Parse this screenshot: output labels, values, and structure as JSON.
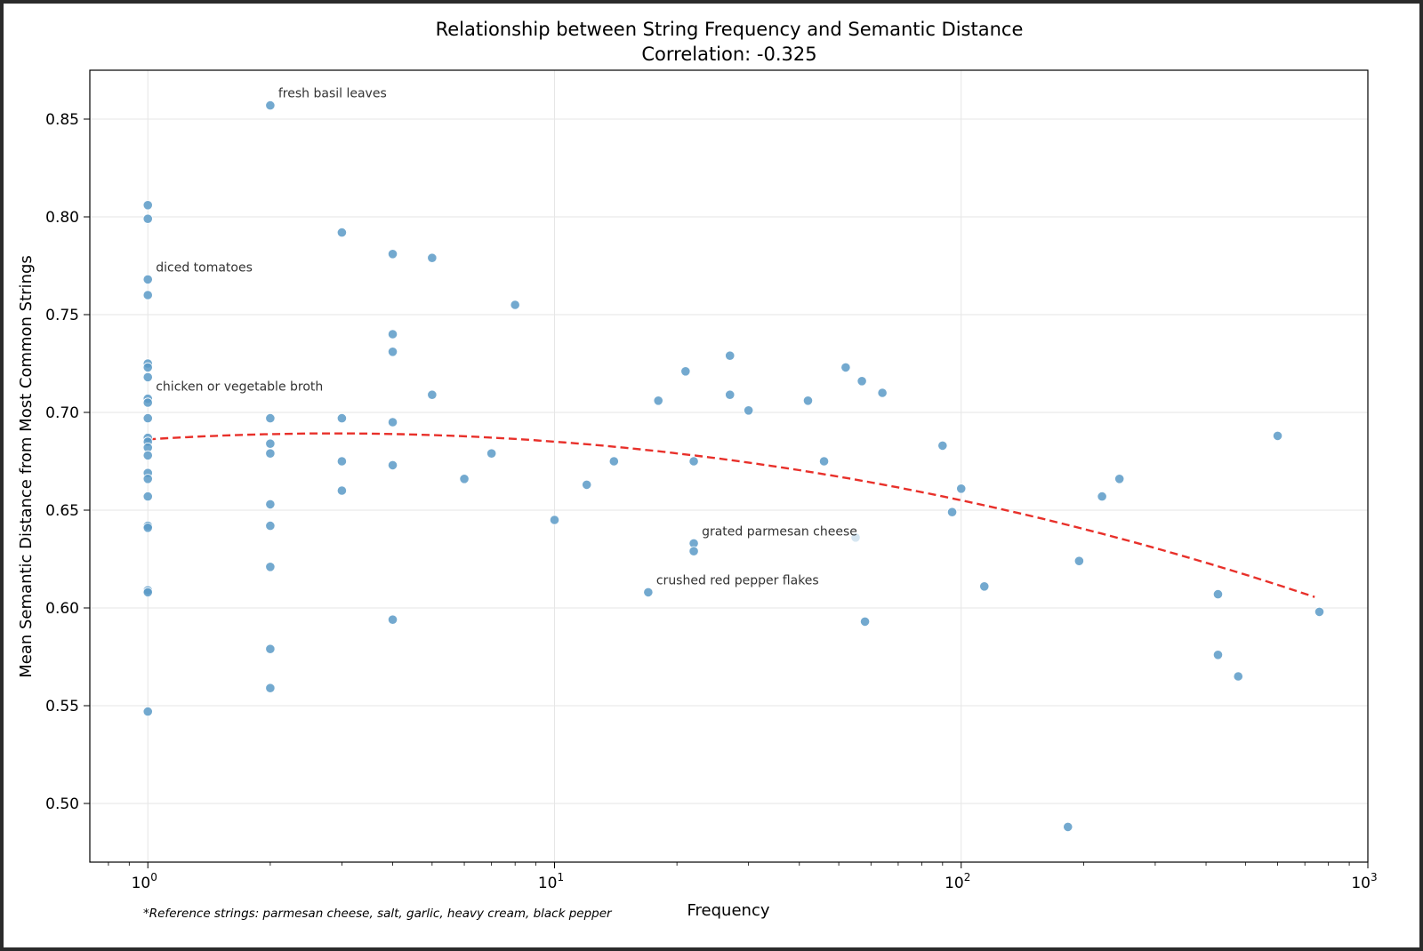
{
  "chart_data": {
    "type": "scatter",
    "title": "Relationship between String Frequency and Semantic Distance",
    "subtitle": "Correlation: -0.325",
    "xlabel": "Frequency",
    "ylabel": "Mean Semantic Distance from Most Common Strings",
    "xscale": "log",
    "xlim": [
      0.72,
      1000
    ],
    "ylim": [
      0.47,
      0.875
    ],
    "x_ticks": [
      {
        "value": 1,
        "base": "10",
        "exp": "0"
      },
      {
        "value": 10,
        "base": "10",
        "exp": "1"
      },
      {
        "value": 100,
        "base": "10",
        "exp": "2"
      },
      {
        "value": 1000,
        "base": "10",
        "exp": "3"
      }
    ],
    "y_ticks": [
      {
        "value": 0.5,
        "label": "0.50"
      },
      {
        "value": 0.55,
        "label": "0.55"
      },
      {
        "value": 0.6,
        "label": "0.60"
      },
      {
        "value": 0.65,
        "label": "0.65"
      },
      {
        "value": 0.7,
        "label": "0.70"
      },
      {
        "value": 0.75,
        "label": "0.75"
      },
      {
        "value": 0.8,
        "label": "0.80"
      },
      {
        "value": 0.85,
        "label": "0.85"
      }
    ],
    "grid": true,
    "point_color": "#5b9ac7",
    "trend_color": "#e8302a",
    "points": [
      {
        "x": 1,
        "y": 0.806
      },
      {
        "x": 1,
        "y": 0.799
      },
      {
        "x": 1,
        "y": 0.768
      },
      {
        "x": 1,
        "y": 0.76
      },
      {
        "x": 1,
        "y": 0.725
      },
      {
        "x": 1,
        "y": 0.723
      },
      {
        "x": 1,
        "y": 0.718
      },
      {
        "x": 1,
        "y": 0.707
      },
      {
        "x": 1,
        "y": 0.705
      },
      {
        "x": 1,
        "y": 0.697
      },
      {
        "x": 1,
        "y": 0.687
      },
      {
        "x": 1,
        "y": 0.685
      },
      {
        "x": 1,
        "y": 0.682
      },
      {
        "x": 1,
        "y": 0.678
      },
      {
        "x": 1,
        "y": 0.669
      },
      {
        "x": 1,
        "y": 0.666
      },
      {
        "x": 1,
        "y": 0.657
      },
      {
        "x": 1,
        "y": 0.642
      },
      {
        "x": 1,
        "y": 0.641
      },
      {
        "x": 1,
        "y": 0.609
      },
      {
        "x": 1,
        "y": 0.608
      },
      {
        "x": 1,
        "y": 0.547
      },
      {
        "x": 2,
        "y": 0.857
      },
      {
        "x": 2,
        "y": 0.697
      },
      {
        "x": 2,
        "y": 0.684
      },
      {
        "x": 2,
        "y": 0.679
      },
      {
        "x": 2,
        "y": 0.653
      },
      {
        "x": 2,
        "y": 0.642
      },
      {
        "x": 2,
        "y": 0.621
      },
      {
        "x": 2,
        "y": 0.579
      },
      {
        "x": 2,
        "y": 0.559
      },
      {
        "x": 3,
        "y": 0.792
      },
      {
        "x": 3,
        "y": 0.697
      },
      {
        "x": 3,
        "y": 0.675
      },
      {
        "x": 3,
        "y": 0.66
      },
      {
        "x": 4,
        "y": 0.781
      },
      {
        "x": 4,
        "y": 0.74
      },
      {
        "x": 4,
        "y": 0.731
      },
      {
        "x": 4,
        "y": 0.695
      },
      {
        "x": 4,
        "y": 0.673
      },
      {
        "x": 4,
        "y": 0.594
      },
      {
        "x": 5,
        "y": 0.779
      },
      {
        "x": 5,
        "y": 0.709
      },
      {
        "x": 6,
        "y": 0.666
      },
      {
        "x": 7,
        "y": 0.679
      },
      {
        "x": 8,
        "y": 0.755
      },
      {
        "x": 10,
        "y": 0.645
      },
      {
        "x": 12,
        "y": 0.663
      },
      {
        "x": 14,
        "y": 0.675
      },
      {
        "x": 17,
        "y": 0.608
      },
      {
        "x": 18,
        "y": 0.706
      },
      {
        "x": 21,
        "y": 0.721
      },
      {
        "x": 22,
        "y": 0.675
      },
      {
        "x": 22,
        "y": 0.633
      },
      {
        "x": 22,
        "y": 0.629
      },
      {
        "x": 27,
        "y": 0.729
      },
      {
        "x": 27,
        "y": 0.709
      },
      {
        "x": 30,
        "y": 0.701
      },
      {
        "x": 42,
        "y": 0.706
      },
      {
        "x": 46,
        "y": 0.675
      },
      {
        "x": 52,
        "y": 0.723
      },
      {
        "x": 55,
        "y": 0.636,
        "faded": true
      },
      {
        "x": 57,
        "y": 0.716
      },
      {
        "x": 58,
        "y": 0.593
      },
      {
        "x": 64,
        "y": 0.71
      },
      {
        "x": 90,
        "y": 0.683
      },
      {
        "x": 95,
        "y": 0.649
      },
      {
        "x": 100,
        "y": 0.661
      },
      {
        "x": 114,
        "y": 0.611
      },
      {
        "x": 183,
        "y": 0.488
      },
      {
        "x": 195,
        "y": 0.624
      },
      {
        "x": 222,
        "y": 0.657
      },
      {
        "x": 245,
        "y": 0.666
      },
      {
        "x": 428,
        "y": 0.607
      },
      {
        "x": 428,
        "y": 0.576
      },
      {
        "x": 480,
        "y": 0.565
      },
      {
        "x": 600,
        "y": 0.688
      },
      {
        "x": 760,
        "y": 0.598
      }
    ],
    "trend": {
      "type": "quadratic-in-log10-x",
      "coeffs": [
        0.6862,
        0.01325,
        -0.01441
      ],
      "x_range": [
        1,
        740
      ]
    },
    "annotations": [
      {
        "text": "fresh basil leaves",
        "x": 2,
        "y": 0.857
      },
      {
        "text": "diced tomatoes",
        "x": 1,
        "y": 0.768
      },
      {
        "text": "chicken or vegetable broth",
        "x": 1,
        "y": 0.707
      },
      {
        "text": "grated parmesan cheese",
        "x": 22,
        "y": 0.633
      },
      {
        "text": "crushed red pepper flakes",
        "x": 17,
        "y": 0.608
      }
    ],
    "footnote": "*Reference strings: parmesan cheese, salt, garlic, heavy cream, black pepper"
  }
}
